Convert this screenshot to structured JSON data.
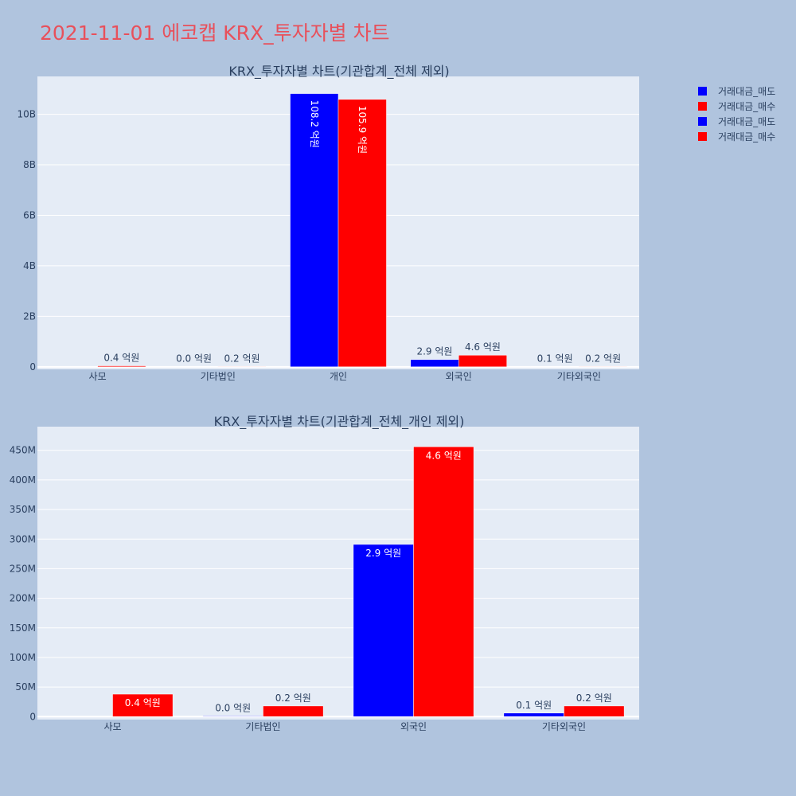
{
  "page": {
    "title": "2021-11-01 에코캡 KRX_투자자별 차트"
  },
  "colors": {
    "sell": "#0000ff",
    "buy": "#ff0000",
    "plot_bg": "#e5ecf6",
    "page_bg": "#b0c4de",
    "grid": "#ffffff"
  },
  "legend": {
    "placement": "top-right",
    "items": [
      {
        "name": "거래대금_매도",
        "color": "#0000ff"
      },
      {
        "name": "거래대금_매수",
        "color": "#ff0000"
      },
      {
        "name": "거래대금_매도",
        "color": "#0000ff"
      },
      {
        "name": "거래대금_매수",
        "color": "#ff0000"
      }
    ]
  },
  "chart_data": [
    {
      "type": "bar",
      "title": "KRX_투자자별 차트(기관합계_전체 제외)",
      "categories": [
        "사모",
        "기타법인",
        "개인",
        "외국인",
        "기타외국인"
      ],
      "series": [
        {
          "name": "거래대금_매도",
          "values": [
            0,
            4000000,
            10820000000,
            290000000,
            8000000
          ],
          "labels": [
            "",
            "0.0 억원",
            "108.2 억원",
            "2.9 억원",
            "0.1 억원"
          ]
        },
        {
          "name": "거래대금_매수",
          "values": [
            40000000,
            18000000,
            10590000000,
            460000000,
            18000000
          ],
          "labels": [
            "0.4 억원",
            "0.2 억원",
            "105.9 억원",
            "4.6 억원",
            "0.2 억원"
          ]
        }
      ],
      "ylim": [
        -100000000,
        11500000000
      ],
      "yticks": [
        0,
        2000000000,
        4000000000,
        6000000000,
        8000000000,
        10000000000
      ],
      "ytick_labels": [
        "0",
        "2B",
        "4B",
        "6B",
        "8B",
        "10B"
      ],
      "grid": true
    },
    {
      "type": "bar",
      "title": "KRX_투자자별 차트(기관합계_전체_개인 제외)",
      "categories": [
        "사모",
        "기타법인",
        "외국인",
        "기타외국인"
      ],
      "series": [
        {
          "name": "거래대금_매도",
          "values": [
            0,
            1000000,
            291000000,
            6000000
          ],
          "labels": [
            "",
            "0.0 억원",
            "2.9 억원",
            "0.1 억원"
          ]
        },
        {
          "name": "거래대금_매수",
          "values": [
            38000000,
            18000000,
            456000000,
            18000000
          ],
          "labels": [
            "0.4 억원",
            "0.2 억원",
            "4.6 억원",
            "0.2 억원"
          ]
        }
      ],
      "ylim": [
        -5000000,
        490000000
      ],
      "yticks": [
        0,
        50000000,
        100000000,
        150000000,
        200000000,
        250000000,
        300000000,
        350000000,
        400000000,
        450000000
      ],
      "ytick_labels": [
        "0",
        "50M",
        "100M",
        "150M",
        "200M",
        "250M",
        "300M",
        "350M",
        "400M",
        "450M"
      ],
      "grid": true
    }
  ]
}
